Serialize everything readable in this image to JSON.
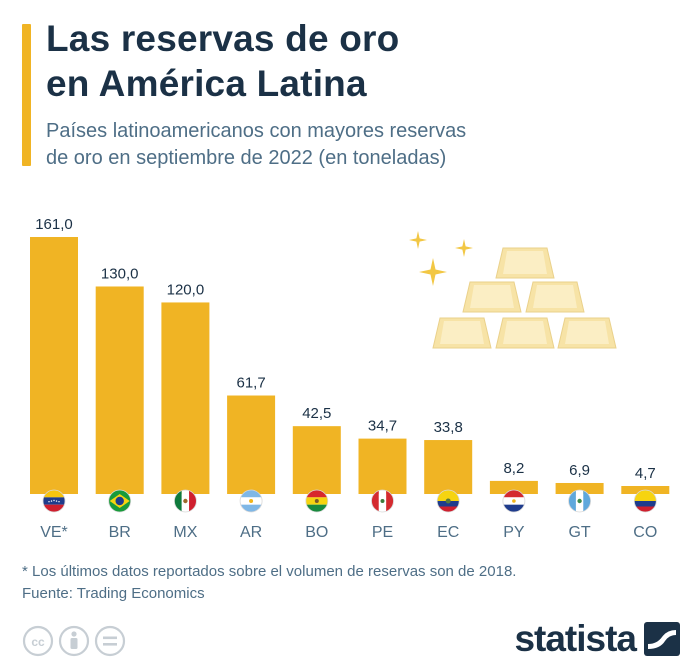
{
  "header": {
    "title_line1": "Las reservas de oro",
    "title_line2": "en América Latina",
    "subtitle_line1": "Países latinoamericanos con mayores reservas",
    "subtitle_line2": "de oro en septiembre de 2022 (en toneladas)"
  },
  "chart_data": {
    "type": "bar",
    "title": "Las reservas de oro en América Latina",
    "subtitle": "Países latinoamericanos con mayores reservas de oro en septiembre de 2022 (en toneladas)",
    "categories": [
      "VE*",
      "BR",
      "MX",
      "AR",
      "BO",
      "PE",
      "EC",
      "PY",
      "GT",
      "CO"
    ],
    "values": [
      161.0,
      130.0,
      120.0,
      61.7,
      42.5,
      34.7,
      33.8,
      8.2,
      6.9,
      4.7
    ],
    "value_labels": [
      "161,0",
      "130,0",
      "120,0",
      "61,7",
      "42,5",
      "34,7",
      "33,8",
      "8,2",
      "6,9",
      "4,7"
    ],
    "ylim": [
      0,
      161
    ],
    "grid": false,
    "bar_color": "#f0b424"
  },
  "flags": [
    "venezuela-flag-icon",
    "brazil-flag-icon",
    "mexico-flag-icon",
    "argentina-flag-icon",
    "bolivia-flag-icon",
    "peru-flag-icon",
    "ecuador-flag-icon",
    "paraguay-flag-icon",
    "guatemala-flag-icon",
    "colombia-flag-icon"
  ],
  "illustration": "gold-bars-icon",
  "footnote": {
    "note": "* Los últimos datos reportados sobre el volumen de reservas son de 2018.",
    "source": "Fuente: Trading Economics"
  },
  "brand": {
    "name": "statista"
  },
  "colors": {
    "accent": "#f0b424",
    "title": "#1b3146",
    "text": "#4e6e86"
  }
}
